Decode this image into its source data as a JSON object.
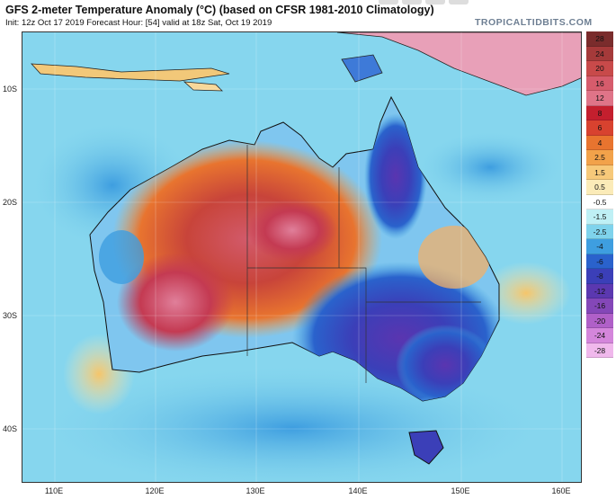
{
  "header": {
    "title": "GFS 2-meter Temperature Anomaly (°C) (based on CFSR 1981-2010 Climatology)",
    "subtitle": "Init: 12z Oct 17 2019   Forecast Hour: [54]   valid at 18z Sat, Oct 19 2019",
    "brand": "TROPICALTIDBITS.COM"
  },
  "axes": {
    "lat_labels": [
      "10S",
      "20S",
      "30S",
      "40S"
    ],
    "lon_labels": [
      "110E",
      "120E",
      "130E",
      "140E",
      "150E",
      "160E"
    ]
  },
  "colorbar": {
    "labels": [
      "28",
      "24",
      "20",
      "16",
      "12",
      "8",
      "6",
      "4",
      "2.5",
      "1.5",
      "0.5",
      "-0.5",
      "-1.5",
      "-2.5",
      "-4",
      "-6",
      "-8",
      "-12",
      "-16",
      "-20",
      "-24",
      "-28"
    ],
    "colors": [
      "#7a2c2c",
      "#a53a3a",
      "#c84a4a",
      "#d65c6c",
      "#df7488",
      "#c41f2e",
      "#d8422f",
      "#e8742f",
      "#f2a24a",
      "#f7c97a",
      "#fbebb8",
      "#ffffff",
      "#bff0f5",
      "#7fd3ec",
      "#3e9ee0",
      "#2a62cc",
      "#3b3fb8",
      "#5b38b0",
      "#8447b8",
      "#b060c8",
      "#d486db",
      "#f0b8ec"
    ]
  },
  "palette": {
    "ocean_neutral": "#7fd3ec",
    "ocean_cool": "#3e9ee0",
    "warm_core": "#c84a4a",
    "cold_core": "#3b3fb8"
  }
}
